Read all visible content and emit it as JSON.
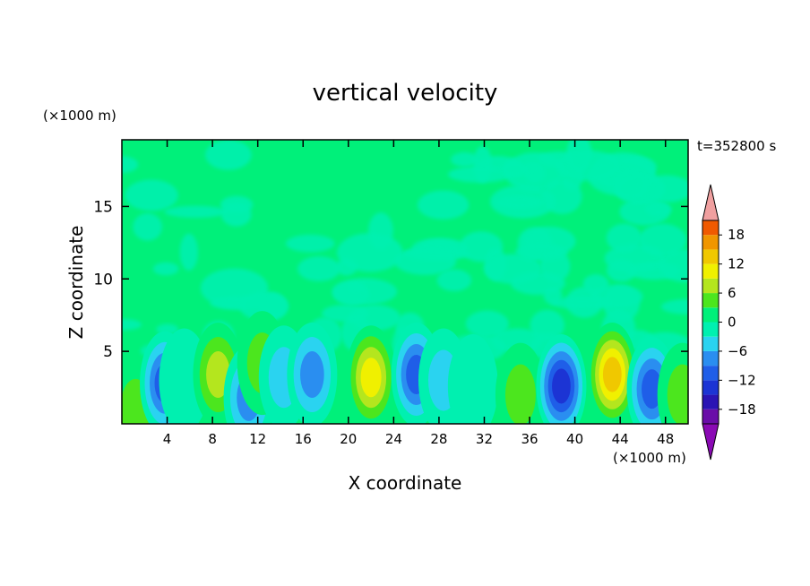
{
  "chart_data": {
    "type": "heatmap",
    "title": "vertical velocity",
    "xlabel": "X coordinate",
    "ylabel": "Z coordinate",
    "x_unit": "(×1000 m)",
    "z_unit": "(×1000 m)",
    "time_label": "t=352800 s",
    "xlim": [
      0,
      50
    ],
    "ylim": [
      0,
      19.6
    ],
    "x_ticks": [
      4,
      8,
      12,
      16,
      20,
      24,
      28,
      32,
      36,
      40,
      44,
      48
    ],
    "y_ticks": [
      5,
      10,
      15
    ],
    "colorbar": {
      "tick_labels": [
        "18",
        "12",
        "6",
        "0",
        "−6",
        "−12",
        "−18"
      ],
      "tick_values": [
        18,
        12,
        6,
        0,
        -6,
        -12,
        -18
      ],
      "levels": [
        -21,
        -18,
        -15,
        -12,
        -9,
        -6,
        -3,
        0,
        3,
        6,
        9,
        12,
        15,
        18,
        21
      ],
      "colors": [
        "#6a0da8",
        "#2a14b4",
        "#1c34d4",
        "#1f5ee8",
        "#2a8ef0",
        "#2ad3f0",
        "#00f0b0",
        "#00f07a",
        "#4ce61e",
        "#b4e61e",
        "#f0f000",
        "#f0c800",
        "#f09600",
        "#f05a00",
        "#f01e1e",
        "#f0a0a0"
      ],
      "under_color": "#8a0ab4",
      "over_color": "#f0a0a0"
    },
    "background_level": 0,
    "features": [
      {
        "x": 1.2,
        "z": 1.0,
        "value": 6
      },
      {
        "x": 3.8,
        "z": 2.8,
        "value": -12
      },
      {
        "x": 5.5,
        "z": 3.0,
        "value": -3
      },
      {
        "x": 8.5,
        "z": 3.4,
        "value": 9
      },
      {
        "x": 11.2,
        "z": 1.8,
        "value": -9
      },
      {
        "x": 12.4,
        "z": 4.2,
        "value": 6
      },
      {
        "x": 14.3,
        "z": 3.2,
        "value": -6
      },
      {
        "x": 16.8,
        "z": 3.4,
        "value": -9
      },
      {
        "x": 22.0,
        "z": 3.2,
        "value": 12
      },
      {
        "x": 26.0,
        "z": 3.4,
        "value": -12
      },
      {
        "x": 28.4,
        "z": 3.0,
        "value": -6
      },
      {
        "x": 31.0,
        "z": 2.6,
        "value": -3
      },
      {
        "x": 35.2,
        "z": 2.0,
        "value": 6
      },
      {
        "x": 38.8,
        "z": 2.6,
        "value": -15
      },
      {
        "x": 43.3,
        "z": 3.4,
        "value": 15
      },
      {
        "x": 46.8,
        "z": 2.4,
        "value": -12
      },
      {
        "x": 49.5,
        "z": 2.0,
        "value": 6
      }
    ]
  }
}
